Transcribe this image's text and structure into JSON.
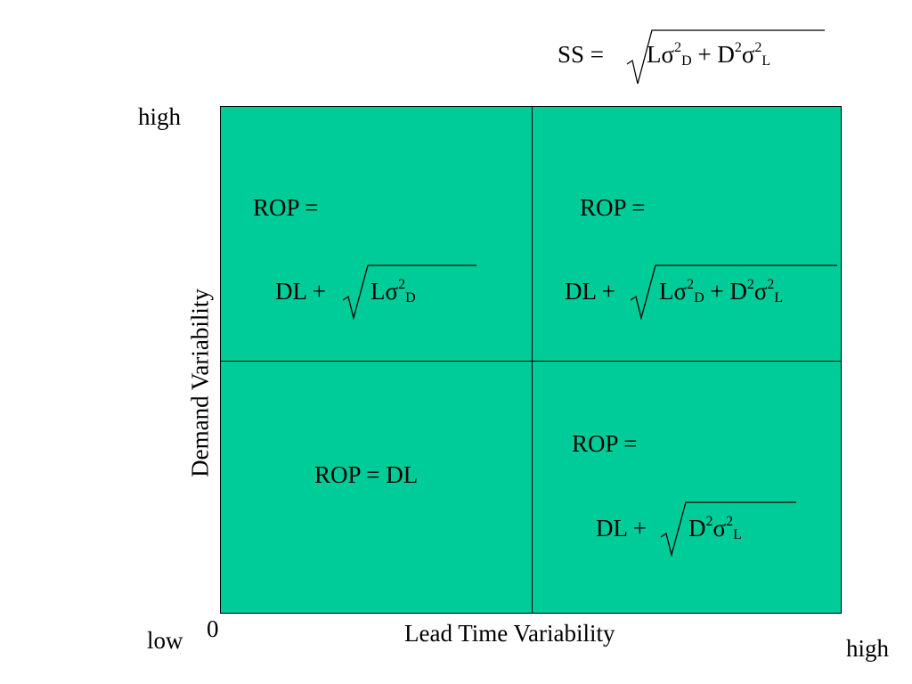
{
  "formula_top": {
    "lhs": "SS =",
    "t1_base": "Lσ",
    "t1_sup": "2",
    "t1_sub": "D",
    "op": "+ D",
    "t2_sup_a": "2",
    "t2_base": "σ",
    "t2_sup_b": "2",
    "t2_sub": "L"
  },
  "axes": {
    "y_high": "high",
    "y_low": "low",
    "origin": "0",
    "x_high": "high",
    "x_label": "Lead Time Variability",
    "y_label": "Demand Variability"
  },
  "quadrants": {
    "top_left": {
      "rop": "ROP =",
      "dl": "DL +",
      "t1_base": "Lσ",
      "t1_sup": "2",
      "t1_sub": "D"
    },
    "top_right": {
      "rop": "ROP =",
      "dl": "DL +",
      "t1_base": "Lσ",
      "t1_sup": "2",
      "t1_sub": "D",
      "op": "+ D",
      "t2_sup_a": "2",
      "t2_base": "σ",
      "t2_sup_b": "2",
      "t2_sub": "L"
    },
    "bottom_left": {
      "rop": "ROP = DL"
    },
    "bottom_right": {
      "rop": "ROP =",
      "dl": "DL +",
      "t1_base": "D",
      "t1_sup_a": "2",
      "t1_mid": "σ",
      "t1_sup_b": "2",
      "t1_sub": "L"
    }
  },
  "colors": {
    "quadrant_fill": "#00cc99",
    "lines": "#000000",
    "background": "#ffffff"
  }
}
